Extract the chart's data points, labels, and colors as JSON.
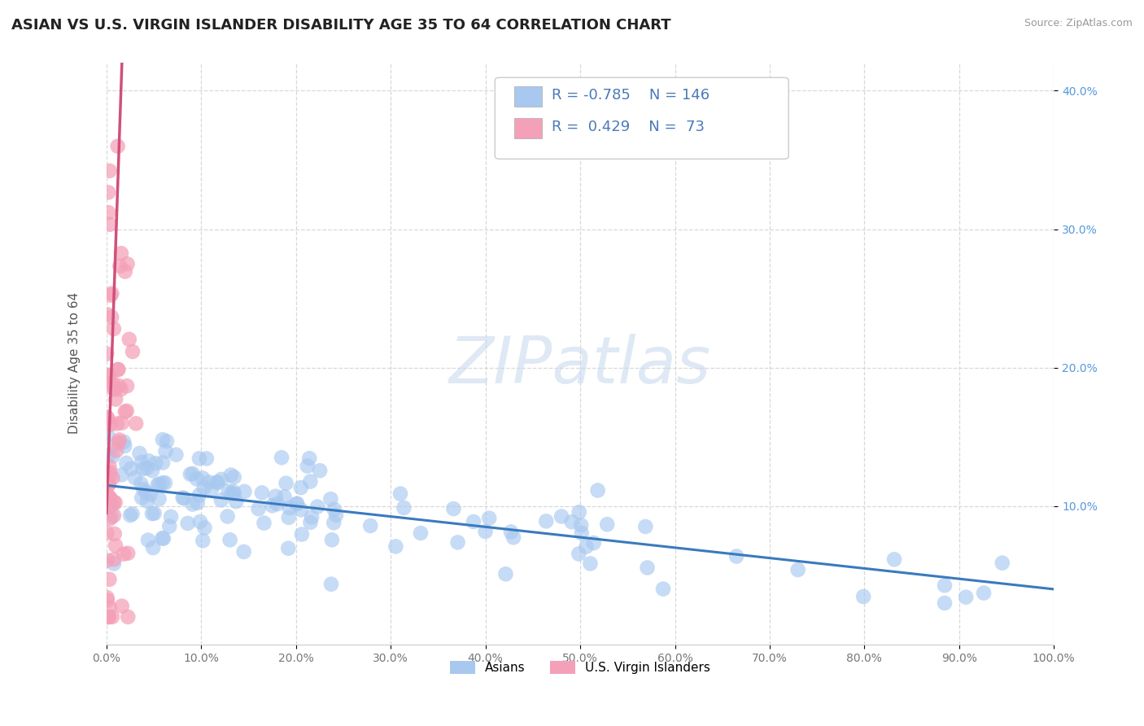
{
  "title": "ASIAN VS U.S. VIRGIN ISLANDER DISABILITY AGE 35 TO 64 CORRELATION CHART",
  "source": "Source: ZipAtlas.com",
  "ylabel": "Disability Age 35 to 64",
  "watermark": "ZIPatlas",
  "asian_R": -0.785,
  "asian_N": 146,
  "usvi_R": 0.429,
  "usvi_N": 73,
  "asian_color": "#a8c8f0",
  "usvi_color": "#f4a0b8",
  "asian_line_color": "#3a7abf",
  "usvi_line_color": "#d0507a",
  "usvi_dash_color": "#e090a8",
  "xlim": [
    0.0,
    1.0
  ],
  "ylim": [
    0.0,
    0.42
  ],
  "xtick_values": [
    0.0,
    0.1,
    0.2,
    0.3,
    0.4,
    0.5,
    0.6,
    0.7,
    0.8,
    0.9,
    1.0
  ],
  "xtick_labels": [
    "0.0%",
    "10.0%",
    "20.0%",
    "30.0%",
    "40.0%",
    "50.0%",
    "60.0%",
    "70.0%",
    "80.0%",
    "90.0%",
    "100.0%"
  ],
  "ytick_values": [
    0.1,
    0.2,
    0.3,
    0.4
  ],
  "ytick_labels": [
    "10.0%",
    "20.0%",
    "30.0%",
    "40.0%"
  ],
  "background_color": "#ffffff",
  "grid_color": "#d8d8d8",
  "title_fontsize": 13,
  "legend_text_color": "#4a7ab8",
  "tick_color": "#5599dd"
}
